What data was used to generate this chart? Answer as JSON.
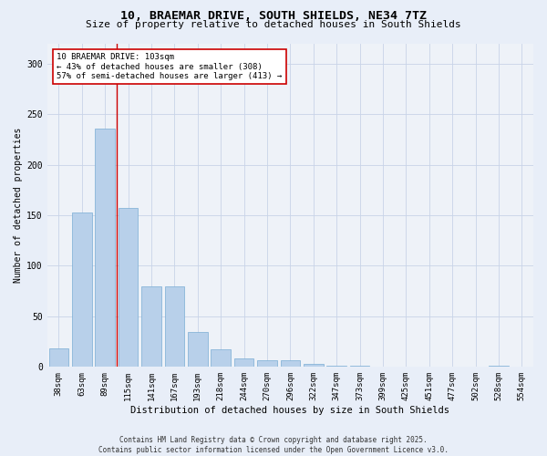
{
  "title1": "10, BRAEMAR DRIVE, SOUTH SHIELDS, NE34 7TZ",
  "title2": "Size of property relative to detached houses in South Shields",
  "xlabel": "Distribution of detached houses by size in South Shields",
  "ylabel": "Number of detached properties",
  "categories": [
    "38sqm",
    "63sqm",
    "89sqm",
    "115sqm",
    "141sqm",
    "167sqm",
    "193sqm",
    "218sqm",
    "244sqm",
    "270sqm",
    "296sqm",
    "322sqm",
    "347sqm",
    "373sqm",
    "399sqm",
    "425sqm",
    "451sqm",
    "477sqm",
    "502sqm",
    "528sqm",
    "554sqm"
  ],
  "values": [
    18,
    153,
    236,
    157,
    80,
    80,
    35,
    17,
    8,
    7,
    7,
    3,
    1,
    1,
    0,
    0,
    0,
    0,
    0,
    1,
    0
  ],
  "bar_color": "#b8d0ea",
  "bar_edge_color": "#7aadd4",
  "grid_color": "#c8d4e8",
  "property_line_x": 2.5,
  "annotation_text": "10 BRAEMAR DRIVE: 103sqm\n← 43% of detached houses are smaller (308)\n57% of semi-detached houses are larger (413) →",
  "annotation_box_color": "#ffffff",
  "annotation_box_edge": "#cc0000",
  "vline_color": "#cc0000",
  "ylim": [
    0,
    320
  ],
  "yticks": [
    0,
    50,
    100,
    150,
    200,
    250,
    300
  ],
  "footnote": "Contains HM Land Registry data © Crown copyright and database right 2025.\nContains public sector information licensed under the Open Government Licence v3.0.",
  "bg_color": "#e8eef8",
  "plot_bg_color": "#eef2f8",
  "title1_fontsize": 9.5,
  "title2_fontsize": 8.0,
  "xlabel_fontsize": 7.5,
  "ylabel_fontsize": 7.0,
  "tick_fontsize": 6.5,
  "annot_fontsize": 6.5,
  "footnote_fontsize": 5.5
}
